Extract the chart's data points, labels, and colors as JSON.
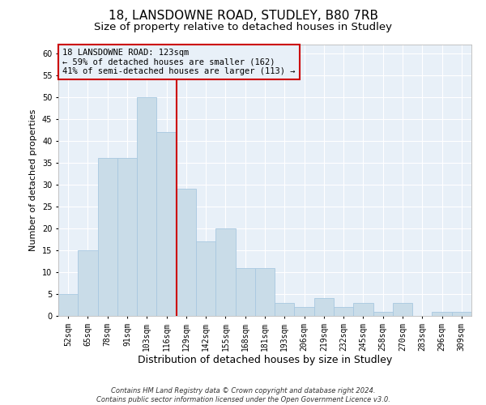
{
  "title1": "18, LANSDOWNE ROAD, STUDLEY, B80 7RB",
  "title2": "Size of property relative to detached houses in Studley",
  "xlabel": "Distribution of detached houses by size in Studley",
  "ylabel": "Number of detached properties",
  "categories": [
    "52sqm",
    "65sqm",
    "78sqm",
    "91sqm",
    "103sqm",
    "116sqm",
    "129sqm",
    "142sqm",
    "155sqm",
    "168sqm",
    "181sqm",
    "193sqm",
    "206sqm",
    "219sqm",
    "232sqm",
    "245sqm",
    "258sqm",
    "270sqm",
    "283sqm",
    "296sqm",
    "309sqm"
  ],
  "values": [
    5,
    15,
    36,
    36,
    50,
    42,
    29,
    17,
    20,
    11,
    11,
    3,
    2,
    4,
    2,
    3,
    1,
    3,
    0,
    1,
    1
  ],
  "bar_color": "#c9dce8",
  "bar_edge_color": "#a8c8e0",
  "vline_x": 5.5,
  "vline_color": "#cc0000",
  "annotation_text": "18 LANSDOWNE ROAD: 123sqm\n← 59% of detached houses are smaller (162)\n41% of semi-detached houses are larger (113) →",
  "annotation_box_color": "#cc0000",
  "ylim": [
    0,
    62
  ],
  "yticks": [
    0,
    5,
    10,
    15,
    20,
    25,
    30,
    35,
    40,
    45,
    50,
    55,
    60
  ],
  "footer1": "Contains HM Land Registry data © Crown copyright and database right 2024.",
  "footer2": "Contains public sector information licensed under the Open Government Licence v3.0.",
  "background_color": "#ffffff",
  "plot_bg_color": "#e8f0f8",
  "grid_color": "#ffffff",
  "title1_fontsize": 11,
  "title2_fontsize": 9.5,
  "tick_fontsize": 7,
  "ylabel_fontsize": 8,
  "xlabel_fontsize": 9,
  "footer_fontsize": 6,
  "annotation_fontsize": 7.5
}
